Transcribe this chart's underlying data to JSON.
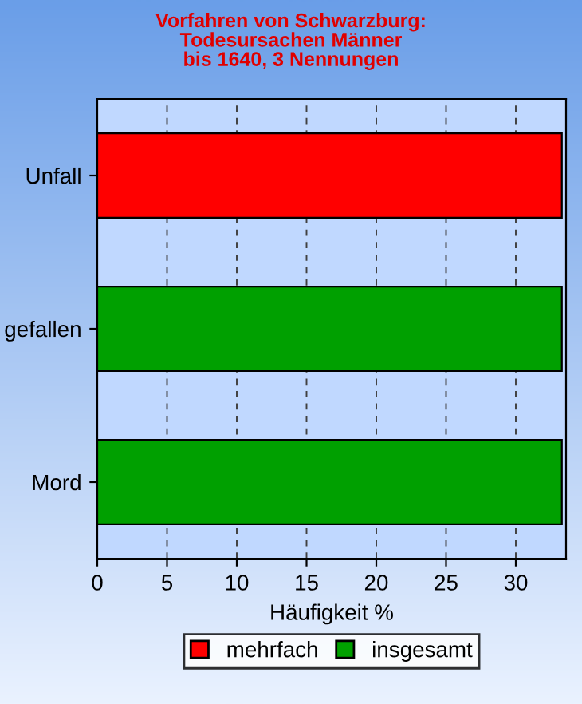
{
  "chart_data": {
    "type": "bar",
    "orientation": "horizontal",
    "title": "Vorfahren von Schwarzburg:\nTodesursachen Männer\nbis 1640, 3 Nennungen",
    "xlabel": "Häufigkeit %",
    "categories": [
      "Unfall",
      "gefallen",
      "Mord"
    ],
    "series": [
      {
        "name": "mehrfach",
        "color": "#ff0000",
        "values": [
          33.3,
          null,
          null
        ]
      },
      {
        "name": "insgesamt",
        "color": "#00a000",
        "values": [
          null,
          33.3,
          33.3
        ]
      }
    ],
    "xlim": [
      0,
      33.6
    ],
    "xticks": [
      0,
      5,
      10,
      15,
      20,
      25,
      30
    ],
    "grid": "x",
    "legend": "bottom"
  }
}
